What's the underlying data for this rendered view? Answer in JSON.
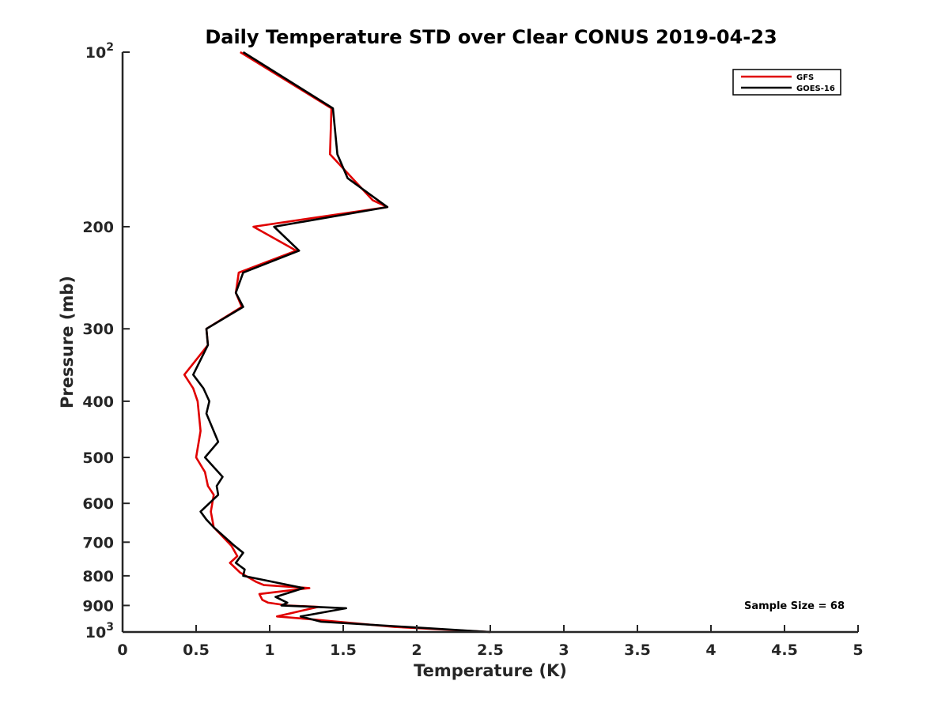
{
  "chart_data": {
    "type": "line",
    "title": "Daily Temperature STD over Clear CONUS 2019-04-23",
    "xlabel": "Temperature (K)",
    "ylabel": "Pressure (mb)",
    "xlim": [
      0,
      5
    ],
    "ylim": [
      100,
      1000
    ],
    "y_scale": "log",
    "y_reversed": true,
    "x_ticks": [
      "0",
      "0.5",
      "1",
      "1.5",
      "2",
      "2.5",
      "3",
      "3.5",
      "4",
      "4.5",
      "5"
    ],
    "y_ticks": [
      {
        "value": 100,
        "base": "10",
        "exp": "2"
      },
      {
        "value": 200,
        "label": "200"
      },
      {
        "value": 300,
        "label": "300"
      },
      {
        "value": 400,
        "label": "400"
      },
      {
        "value": 500,
        "label": "500"
      },
      {
        "value": 600,
        "label": "600"
      },
      {
        "value": 700,
        "label": "700"
      },
      {
        "value": 800,
        "label": "800"
      },
      {
        "value": 900,
        "label": "900"
      },
      {
        "value": 1000,
        "base": "10",
        "exp": "3"
      }
    ],
    "grid": false,
    "legend_position": "top-right",
    "annotation": "Sample Size = 68",
    "series": [
      {
        "name": "GFS",
        "color": "#e00000",
        "points": [
          [
            0.8,
            100
          ],
          [
            1.42,
            125
          ],
          [
            1.41,
            150
          ],
          [
            1.7,
            180
          ],
          [
            1.8,
            185
          ],
          [
            0.89,
            200
          ],
          [
            1.18,
            220
          ],
          [
            0.79,
            240
          ],
          [
            0.77,
            260
          ],
          [
            0.81,
            275
          ],
          [
            0.57,
            300
          ],
          [
            0.58,
            320
          ],
          [
            0.42,
            360
          ],
          [
            0.48,
            380
          ],
          [
            0.51,
            400
          ],
          [
            0.53,
            450
          ],
          [
            0.5,
            500
          ],
          [
            0.56,
            530
          ],
          [
            0.58,
            560
          ],
          [
            0.62,
            580
          ],
          [
            0.6,
            620
          ],
          [
            0.62,
            660
          ],
          [
            0.74,
            710
          ],
          [
            0.78,
            740
          ],
          [
            0.73,
            760
          ],
          [
            0.8,
            790
          ],
          [
            0.91,
            820
          ],
          [
            0.96,
            830
          ],
          [
            1.27,
            840
          ],
          [
            0.93,
            860
          ],
          [
            0.95,
            880
          ],
          [
            0.99,
            890
          ],
          [
            1.12,
            900
          ],
          [
            1.33,
            905
          ],
          [
            1.05,
            940
          ],
          [
            1.26,
            950
          ],
          [
            1.85,
            980
          ],
          [
            2.5,
            1000
          ]
        ]
      },
      {
        "name": "GOES-16",
        "color": "#000000",
        "points": [
          [
            0.82,
            100
          ],
          [
            1.43,
            125
          ],
          [
            1.46,
            150
          ],
          [
            1.53,
            165
          ],
          [
            1.8,
            185
          ],
          [
            1.03,
            200
          ],
          [
            1.2,
            220
          ],
          [
            0.82,
            240
          ],
          [
            0.77,
            260
          ],
          [
            0.82,
            275
          ],
          [
            0.57,
            300
          ],
          [
            0.58,
            320
          ],
          [
            0.48,
            360
          ],
          [
            0.55,
            380
          ],
          [
            0.59,
            400
          ],
          [
            0.57,
            420
          ],
          [
            0.65,
            470
          ],
          [
            0.56,
            500
          ],
          [
            0.68,
            540
          ],
          [
            0.64,
            560
          ],
          [
            0.65,
            580
          ],
          [
            0.53,
            620
          ],
          [
            0.57,
            640
          ],
          [
            0.62,
            660
          ],
          [
            0.76,
            710
          ],
          [
            0.82,
            730
          ],
          [
            0.77,
            760
          ],
          [
            0.83,
            780
          ],
          [
            0.82,
            800
          ],
          [
            1.23,
            840
          ],
          [
            1.04,
            870
          ],
          [
            1.12,
            890
          ],
          [
            1.08,
            900
          ],
          [
            1.52,
            910
          ],
          [
            1.21,
            940
          ],
          [
            1.35,
            960
          ],
          [
            2.5,
            1000
          ]
        ]
      }
    ]
  }
}
